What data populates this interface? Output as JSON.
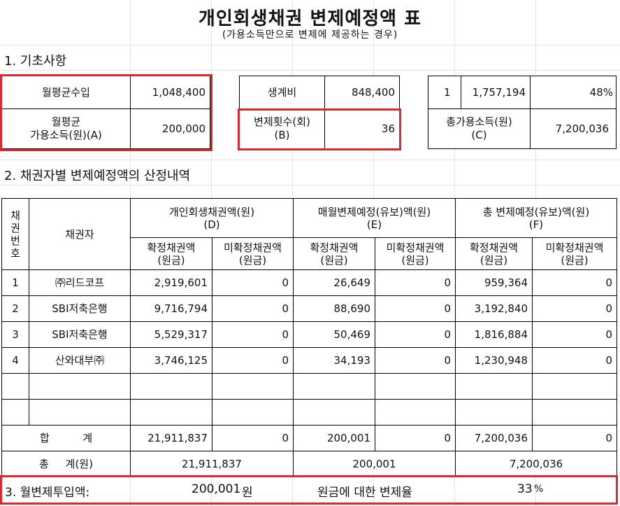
{
  "title": "개인회생채권 변제예정액 표",
  "subtitle": "(가용소득만으로 변제에 제공하는 경우)",
  "section1": {
    "heading": "1. 기초사항",
    "monthly_income_label": "월평균수입",
    "monthly_income_value": "1,048,400",
    "available_income_label_line1": "월평균",
    "available_income_label_line2": "가용소득(원)(A)",
    "available_income_value": "200,000",
    "living_cost_label": "생계비",
    "living_cost_value": "848,400",
    "repay_count_label_line1": "변제횟수(회)",
    "repay_count_label_line2": "(B)",
    "repay_count_value": "36",
    "side_index": "1",
    "side_amount": "1,757,194",
    "side_percent": "48%",
    "total_available_label_line1": "총가용소득(원)",
    "total_available_label_line2": "(C)",
    "total_available_value": "7,200,036"
  },
  "section2": {
    "heading": "2. 채권자별 변제예정액의 산정내역",
    "col_no_line1": "채권",
    "col_no_line2": "번호",
    "col_creditor": "채권자",
    "group_d_line1": "개인회생채권액(원)",
    "group_d_line2": "(D)",
    "group_e_line1": "매월변제예정(유보)액(원)",
    "group_e_line2": "(E)",
    "group_f_line1": "총 변제예정(유보)액(원)",
    "group_f_line2": "(F)",
    "sub_confirmed_line1": "확정채권액",
    "sub_unconfirmed_line1": "미확정채권액",
    "sub_line2": "(원금)",
    "rows": [
      {
        "no": "1",
        "creditor": "㈜리드코프",
        "d1": "2,919,601",
        "d2": "0",
        "e1": "26,649",
        "e2": "0",
        "f1": "959,364",
        "f2": "0"
      },
      {
        "no": "2",
        "creditor": "SBI저축은행",
        "d1": "9,716,794",
        "d2": "0",
        "e1": "88,690",
        "e2": "0",
        "f1": "3,192,840",
        "f2": "0"
      },
      {
        "no": "3",
        "creditor": "SBI저축은행",
        "d1": "5,529,317",
        "d2": "0",
        "e1": "50,469",
        "e2": "0",
        "f1": "1,816,884",
        "f2": "0"
      },
      {
        "no": "4",
        "creditor": "산와대부㈜",
        "d1": "3,746,125",
        "d2": "0",
        "e1": "34,193",
        "e2": "0",
        "f1": "1,230,948",
        "f2": "0"
      }
    ],
    "sum_label": "합          계",
    "sum": {
      "d1": "21,911,837",
      "d2": "0",
      "e1": "200,001",
      "e2": "0",
      "f1": "7,200,036",
      "f2": "0"
    },
    "total_label": "총     계(원)",
    "total": {
      "d": "21,911,837",
      "e": "200,001",
      "f": "7,200,036"
    }
  },
  "section3": {
    "heading": "3. 월변제투입액:",
    "amount": "200,001",
    "unit": "원",
    "ratio_label": "원금에 대한 변제율",
    "ratio_value": "33",
    "ratio_unit": "%"
  }
}
